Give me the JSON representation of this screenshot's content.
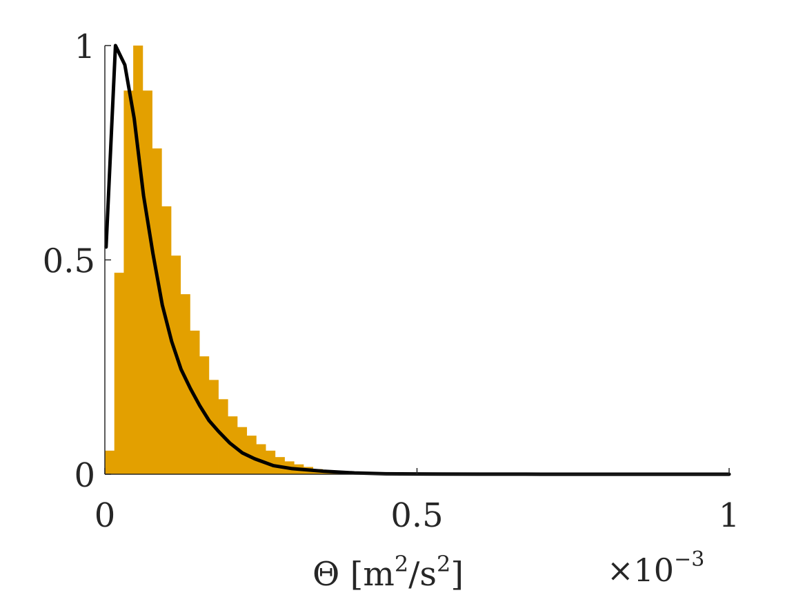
{
  "chart_data": {
    "type": "bar",
    "title": "",
    "xlabel": "Θ [m²/s²]",
    "xlabel_parts": {
      "main": "Θ [m",
      "exp1": "2",
      "mid": "/s",
      "exp2": "2",
      "end": "]"
    },
    "x_multiplier": {
      "base": "×10",
      "exponent": "−3"
    },
    "ylabel": "",
    "xlim": [
      0,
      1
    ],
    "ylim": [
      0,
      1
    ],
    "xticks": [
      0,
      0.5,
      1
    ],
    "xtick_labels": [
      "0",
      "0.5",
      "1"
    ],
    "yticks": [
      0,
      0.5,
      1
    ],
    "ytick_labels": [
      "0",
      "0.5",
      "1"
    ],
    "grid": false,
    "colors": {
      "histogram": "#E3A000",
      "curve": "#000000",
      "axis": "#262626"
    },
    "histogram": {
      "bin_width": 0.01515,
      "bin_left_edges": [
        0,
        0.01515,
        0.0303,
        0.04545,
        0.0606,
        0.07575,
        0.0909,
        0.10605,
        0.1212,
        0.13635,
        0.1515,
        0.16665,
        0.1818,
        0.19695,
        0.2121,
        0.22725,
        0.2424,
        0.25755,
        0.2727,
        0.28785,
        0.303,
        0.31815,
        0.3333,
        0.34845,
        0.3636,
        0.37875,
        0.3939,
        0.40905,
        0.4242,
        0.43935,
        0.4545,
        0.46965,
        0.4848,
        0.49995,
        0.5151,
        0.53025,
        0.5454,
        0.56055,
        0.5757,
        0.59085,
        0.606,
        0.62115,
        0.6363,
        0.65145,
        0.6666,
        0.68175,
        0.6969,
        0.71205,
        0.7272,
        0.74235,
        0.7575,
        0.77265,
        0.7878,
        0.80295,
        0.8181,
        0.83325,
        0.8484,
        0.86355,
        0.8787,
        0.89385,
        0.909,
        0.92415,
        0.9393,
        0.95445,
        0.9696,
        0.98475
      ],
      "values": [
        0.055,
        0.47,
        0.895,
        1.0,
        0.895,
        0.76,
        0.625,
        0.51,
        0.42,
        0.335,
        0.275,
        0.22,
        0.175,
        0.135,
        0.11,
        0.09,
        0.07,
        0.055,
        0.04,
        0.03,
        0.023,
        0.017,
        0.012,
        0.008,
        0.005,
        0.003,
        0.002,
        0.001,
        0.0005,
        0.0003,
        0.0002,
        0.0001,
        0,
        0,
        0,
        0,
        0,
        0,
        0,
        0,
        0,
        0,
        0,
        0,
        0,
        0,
        0,
        0,
        0,
        0,
        0,
        0,
        0,
        0,
        0,
        0,
        0,
        0,
        0,
        0,
        0,
        0,
        0,
        0,
        0,
        0
      ]
    },
    "curve": {
      "x": [
        0.002,
        0.017,
        0.032,
        0.047,
        0.062,
        0.077,
        0.092,
        0.107,
        0.122,
        0.137,
        0.152,
        0.167,
        0.182,
        0.2,
        0.22,
        0.24,
        0.27,
        0.3,
        0.35,
        0.4,
        0.45,
        0.5,
        0.6,
        0.7,
        0.8,
        0.9,
        1.0
      ],
      "y": [
        0.53,
        1.0,
        0.955,
        0.83,
        0.65,
        0.515,
        0.395,
        0.31,
        0.245,
        0.2,
        0.16,
        0.125,
        0.1,
        0.073,
        0.05,
        0.036,
        0.02,
        0.013,
        0.007,
        0.003,
        0.001,
        0.0006,
        0.0003,
        0.0001,
        5e-05,
        2e-05,
        1e-05
      ]
    }
  }
}
